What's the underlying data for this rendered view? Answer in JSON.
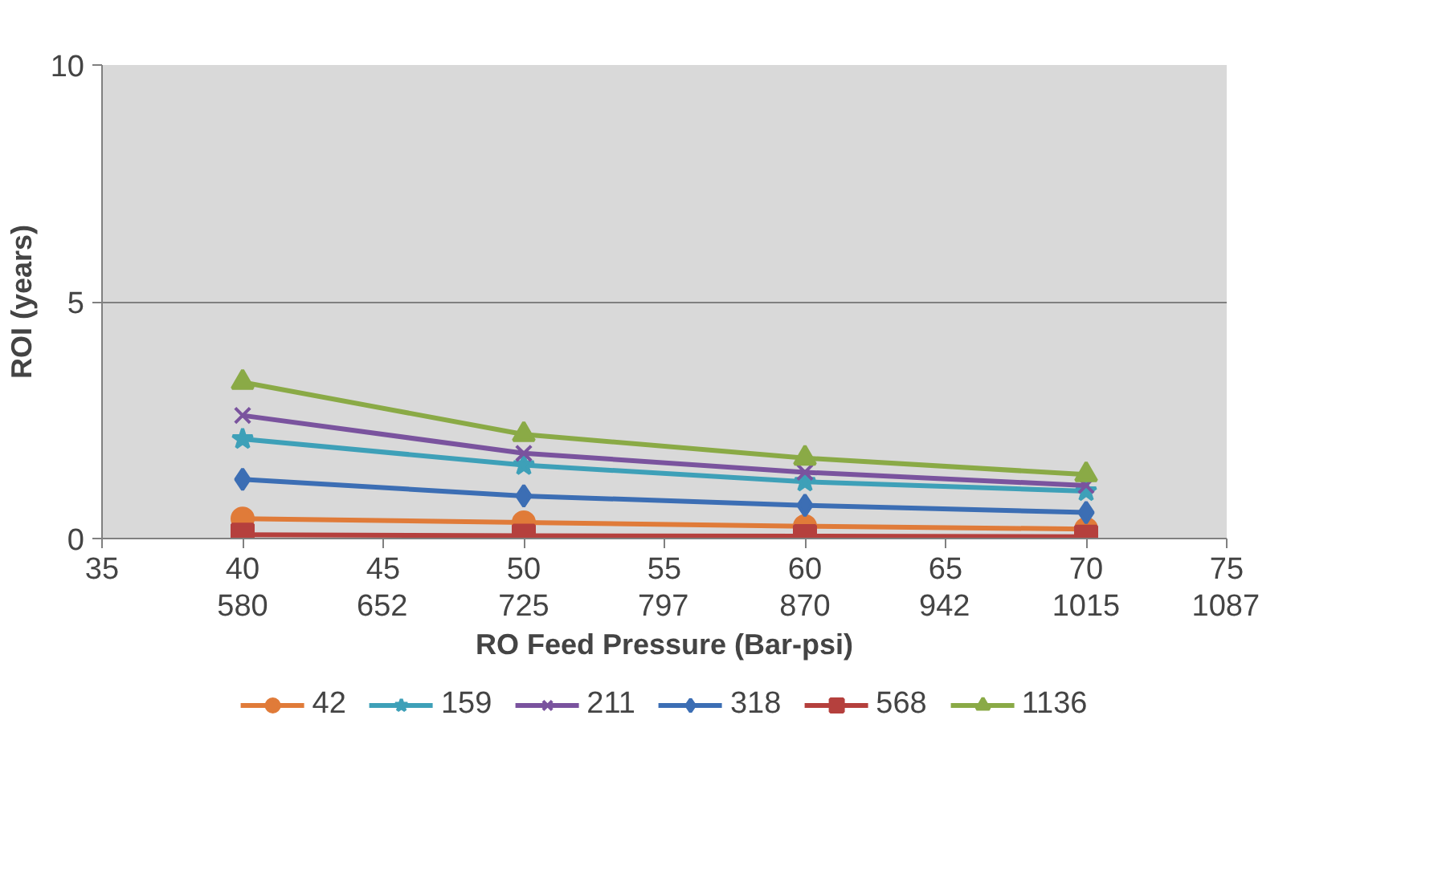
{
  "chart_data": {
    "type": "line",
    "xlabel": "RO Feed Pressure (Bar-psi)",
    "ylabel": "ROI (years)",
    "x": [
      40,
      50,
      60,
      70
    ],
    "xlim": [
      35,
      75
    ],
    "xticks": [
      35,
      40,
      45,
      50,
      55,
      60,
      65,
      70,
      75
    ],
    "x2lim": [
      507.5,
      1087.5
    ],
    "x2ticks": [
      580,
      652,
      725,
      797,
      870,
      942,
      1015,
      1087
    ],
    "ylim": [
      0,
      10
    ],
    "yticks": [
      0,
      5,
      10
    ],
    "grid": "y",
    "legend": "bottom",
    "series": [
      {
        "name": "42",
        "color": "#e07b39",
        "marker": "circle",
        "values": [
          0.42,
          0.34,
          0.26,
          0.2
        ]
      },
      {
        "name": "159",
        "color": "#3ea0b8",
        "marker": "star",
        "values": [
          2.1,
          1.55,
          1.2,
          1.0
        ]
      },
      {
        "name": "211",
        "color": "#7a539e",
        "marker": "cross",
        "values": [
          2.6,
          1.8,
          1.4,
          1.12
        ]
      },
      {
        "name": "318",
        "color": "#3c6eb4",
        "marker": "diamond",
        "values": [
          1.25,
          0.9,
          0.7,
          0.55
        ]
      },
      {
        "name": "568",
        "color": "#b5403d",
        "marker": "square",
        "values": [
          0.08,
          0.06,
          0.05,
          0.04
        ]
      },
      {
        "name": "1136",
        "color": "#8aaa46",
        "marker": "triangle",
        "values": [
          3.3,
          2.2,
          1.7,
          1.35
        ]
      }
    ]
  }
}
